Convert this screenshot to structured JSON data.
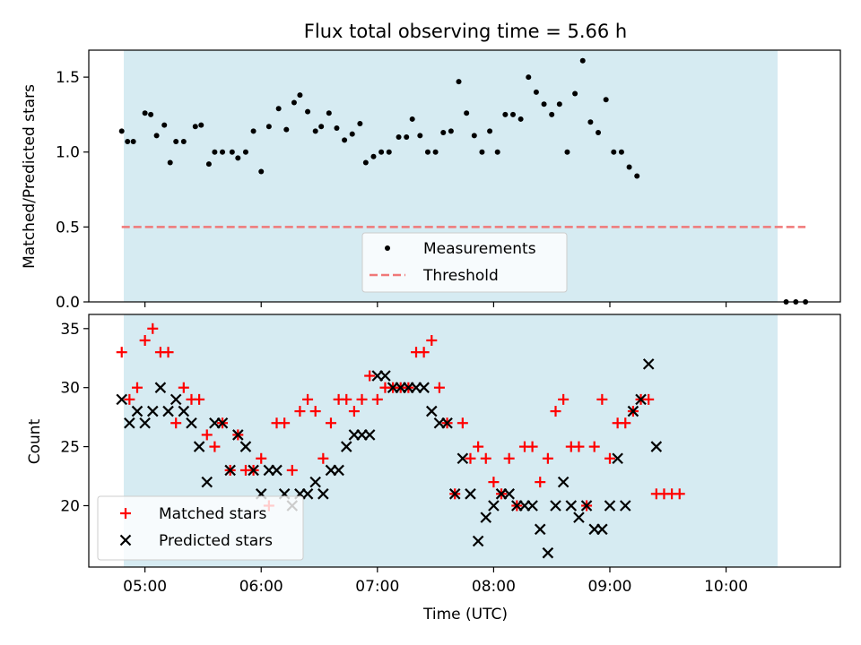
{
  "chart_data": [
    {
      "type": "scatter",
      "title": "Flux total observing time = 5.66 h",
      "xlabel": "",
      "ylabel": "Matched/Predicted stars",
      "xlim": [
        "04:31",
        "10:59"
      ],
      "ylim": [
        0,
        1.68
      ],
      "yticks": [
        "0.0",
        "0.5",
        "1.0",
        "1.5"
      ],
      "xticks": [
        "05:00",
        "06:00",
        "07:00",
        "08:00",
        "09:00",
        "10:00"
      ],
      "shaded_span": [
        "04:48",
        "10:28"
      ],
      "threshold": {
        "name": "Threshold",
        "value": 0.5,
        "from": "04:48",
        "to": "10:41",
        "color": "#f07878"
      },
      "legend_position": "lower center",
      "series": [
        {
          "name": "Measurements",
          "color": "#000000",
          "points": [
            [
              "04:48",
              1.14
            ],
            [
              "04:51",
              1.07
            ],
            [
              "04:54",
              1.07
            ],
            [
              "05:00",
              1.26
            ],
            [
              "05:03",
              1.25
            ],
            [
              "05:06",
              1.11
            ],
            [
              "05:10",
              1.18
            ],
            [
              "05:13",
              0.93
            ],
            [
              "05:16",
              1.07
            ],
            [
              "05:20",
              1.07
            ],
            [
              "05:26",
              1.17
            ],
            [
              "05:29",
              1.18
            ],
            [
              "05:33",
              0.92
            ],
            [
              "05:36",
              1.0
            ],
            [
              "05:40",
              1.0
            ],
            [
              "05:45",
              1.0
            ],
            [
              "05:48",
              0.96
            ],
            [
              "05:52",
              1.0
            ],
            [
              "05:56",
              1.14
            ],
            [
              "06:00",
              0.87
            ],
            [
              "06:04",
              1.17
            ],
            [
              "06:09",
              1.29
            ],
            [
              "06:13",
              1.15
            ],
            [
              "06:17",
              1.33
            ],
            [
              "06:20",
              1.38
            ],
            [
              "06:24",
              1.27
            ],
            [
              "06:28",
              1.14
            ],
            [
              "06:31",
              1.17
            ],
            [
              "06:35",
              1.26
            ],
            [
              "06:39",
              1.16
            ],
            [
              "06:43",
              1.08
            ],
            [
              "06:47",
              1.12
            ],
            [
              "06:51",
              1.19
            ],
            [
              "06:54",
              0.93
            ],
            [
              "06:58",
              0.97
            ],
            [
              "07:02",
              1.0
            ],
            [
              "07:06",
              1.0
            ],
            [
              "07:11",
              1.1
            ],
            [
              "07:15",
              1.1
            ],
            [
              "07:18",
              1.22
            ],
            [
              "07:22",
              1.11
            ],
            [
              "07:26",
              1.0
            ],
            [
              "07:30",
              1.0
            ],
            [
              "07:34",
              1.13
            ],
            [
              "07:38",
              1.14
            ],
            [
              "07:42",
              1.47
            ],
            [
              "07:46",
              1.26
            ],
            [
              "07:50",
              1.11
            ],
            [
              "07:54",
              1.0
            ],
            [
              "07:58",
              1.14
            ],
            [
              "08:02",
              1.0
            ],
            [
              "08:06",
              1.25
            ],
            [
              "08:10",
              1.25
            ],
            [
              "08:14",
              1.22
            ],
            [
              "08:18",
              1.5
            ],
            [
              "08:22",
              1.4
            ],
            [
              "08:26",
              1.32
            ],
            [
              "08:30",
              1.25
            ],
            [
              "08:34",
              1.32
            ],
            [
              "08:38",
              1.0
            ],
            [
              "08:42",
              1.39
            ],
            [
              "08:46",
              1.61
            ],
            [
              "08:50",
              1.2
            ],
            [
              "08:54",
              1.13
            ],
            [
              "08:58",
              1.35
            ],
            [
              "09:02",
              1.0
            ],
            [
              "09:06",
              1.0
            ],
            [
              "09:10",
              0.9
            ],
            [
              "09:14",
              0.84
            ],
            [
              "10:31",
              0.0
            ],
            [
              "10:36",
              0.0
            ],
            [
              "10:41",
              0.0
            ]
          ]
        }
      ]
    },
    {
      "type": "scatter",
      "title": "",
      "xlabel": "Time (UTC)",
      "ylabel": "Count",
      "xlim": [
        "04:31",
        "10:59"
      ],
      "ylim": [
        14.8,
        36.2
      ],
      "yticks": [
        "20",
        "25",
        "30",
        "35"
      ],
      "xticks": [
        "05:00",
        "06:00",
        "07:00",
        "08:00",
        "09:00",
        "10:00"
      ],
      "shaded_span": [
        "04:48",
        "10:28"
      ],
      "legend_position": "lower left",
      "series": [
        {
          "name": "Matched stars",
          "color": "#ff0000",
          "marker": "plus",
          "points": [
            [
              "04:48",
              33
            ],
            [
              "04:52",
              29
            ],
            [
              "04:56",
              30
            ],
            [
              "05:00",
              34
            ],
            [
              "05:04",
              35
            ],
            [
              "05:08",
              33
            ],
            [
              "05:12",
              33
            ],
            [
              "05:16",
              27
            ],
            [
              "05:20",
              30
            ],
            [
              "05:24",
              29
            ],
            [
              "05:28",
              29
            ],
            [
              "05:32",
              26
            ],
            [
              "05:36",
              25
            ],
            [
              "05:40",
              27
            ],
            [
              "05:44",
              23
            ],
            [
              "05:48",
              26
            ],
            [
              "05:52",
              23
            ],
            [
              "05:56",
              23
            ],
            [
              "06:00",
              24
            ],
            [
              "06:04",
              20
            ],
            [
              "06:08",
              27
            ],
            [
              "06:12",
              27
            ],
            [
              "06:16",
              23
            ],
            [
              "06:20",
              28
            ],
            [
              "06:24",
              29
            ],
            [
              "06:28",
              28
            ],
            [
              "06:32",
              24
            ],
            [
              "06:36",
              27
            ],
            [
              "06:40",
              29
            ],
            [
              "06:44",
              29
            ],
            [
              "06:48",
              28
            ],
            [
              "06:52",
              29
            ],
            [
              "06:56",
              31
            ],
            [
              "07:00",
              29
            ],
            [
              "07:04",
              30
            ],
            [
              "07:08",
              30
            ],
            [
              "07:12",
              30
            ],
            [
              "07:16",
              30
            ],
            [
              "07:20",
              33
            ],
            [
              "07:24",
              33
            ],
            [
              "07:28",
              34
            ],
            [
              "07:32",
              30
            ],
            [
              "07:36",
              27
            ],
            [
              "07:40",
              21
            ],
            [
              "07:44",
              27
            ],
            [
              "07:48",
              24
            ],
            [
              "07:52",
              25
            ],
            [
              "07:56",
              24
            ],
            [
              "08:00",
              22
            ],
            [
              "08:04",
              21
            ],
            [
              "08:08",
              24
            ],
            [
              "08:12",
              20
            ],
            [
              "08:16",
              25
            ],
            [
              "08:20",
              25
            ],
            [
              "08:24",
              22
            ],
            [
              "08:28",
              24
            ],
            [
              "08:32",
              28
            ],
            [
              "08:36",
              29
            ],
            [
              "08:40",
              25
            ],
            [
              "08:44",
              25
            ],
            [
              "08:48",
              20
            ],
            [
              "08:52",
              25
            ],
            [
              "08:56",
              29
            ],
            [
              "09:00",
              24
            ],
            [
              "09:04",
              27
            ],
            [
              "09:08",
              27
            ],
            [
              "09:12",
              28
            ],
            [
              "09:16",
              29
            ],
            [
              "09:20",
              29
            ],
            [
              "09:24",
              21
            ],
            [
              "09:28",
              21
            ],
            [
              "09:32",
              21
            ],
            [
              "09:36",
              21
            ]
          ]
        },
        {
          "name": "Predicted stars",
          "color": "#000000",
          "marker": "x",
          "points": [
            [
              "04:48",
              29
            ],
            [
              "04:52",
              27
            ],
            [
              "04:56",
              28
            ],
            [
              "05:00",
              27
            ],
            [
              "05:04",
              28
            ],
            [
              "05:08",
              30
            ],
            [
              "05:12",
              28
            ],
            [
              "05:16",
              29
            ],
            [
              "05:20",
              28
            ],
            [
              "05:24",
              27
            ],
            [
              "05:28",
              25
            ],
            [
              "05:32",
              22
            ],
            [
              "05:36",
              27
            ],
            [
              "05:40",
              27
            ],
            [
              "05:44",
              23
            ],
            [
              "05:48",
              26
            ],
            [
              "05:52",
              25
            ],
            [
              "05:56",
              23
            ],
            [
              "06:00",
              21
            ],
            [
              "06:04",
              23
            ],
            [
              "06:08",
              23
            ],
            [
              "06:12",
              21
            ],
            [
              "06:16",
              20
            ],
            [
              "06:20",
              21
            ],
            [
              "06:24",
              21
            ],
            [
              "06:28",
              22
            ],
            [
              "06:32",
              21
            ],
            [
              "06:36",
              23
            ],
            [
              "06:40",
              23
            ],
            [
              "06:44",
              25
            ],
            [
              "06:48",
              26
            ],
            [
              "06:52",
              26
            ],
            [
              "06:56",
              26
            ],
            [
              "07:00",
              31
            ],
            [
              "07:04",
              31
            ],
            [
              "07:08",
              30
            ],
            [
              "07:12",
              30
            ],
            [
              "07:16",
              30
            ],
            [
              "07:20",
              30
            ],
            [
              "07:24",
              30
            ],
            [
              "07:28",
              28
            ],
            [
              "07:32",
              27
            ],
            [
              "07:36",
              27
            ],
            [
              "07:40",
              21
            ],
            [
              "07:44",
              24
            ],
            [
              "07:48",
              21
            ],
            [
              "07:52",
              17
            ],
            [
              "07:56",
              19
            ],
            [
              "08:00",
              20
            ],
            [
              "08:04",
              21
            ],
            [
              "08:08",
              21
            ],
            [
              "08:12",
              20
            ],
            [
              "08:16",
              20
            ],
            [
              "08:20",
              20
            ],
            [
              "08:24",
              18
            ],
            [
              "08:28",
              16
            ],
            [
              "08:32",
              20
            ],
            [
              "08:36",
              22
            ],
            [
              "08:40",
              20
            ],
            [
              "08:44",
              19
            ],
            [
              "08:48",
              20
            ],
            [
              "08:52",
              18
            ],
            [
              "08:56",
              18
            ],
            [
              "09:00",
              20
            ],
            [
              "09:04",
              24
            ],
            [
              "09:08",
              20
            ],
            [
              "09:12",
              28
            ],
            [
              "09:16",
              29
            ],
            [
              "09:20",
              32
            ],
            [
              "09:24",
              25
            ]
          ]
        }
      ]
    }
  ]
}
